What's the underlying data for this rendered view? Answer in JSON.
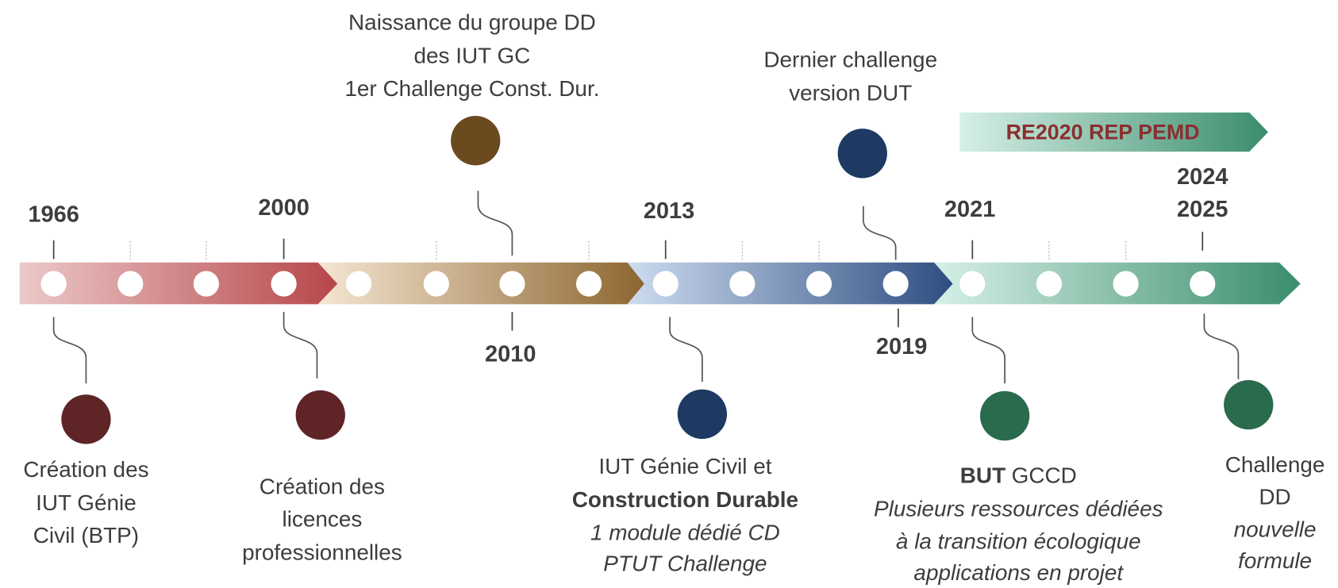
{
  "banner": "RE2020 REP PEMD",
  "years": [
    "1966",
    "2000",
    "2010",
    "2013",
    "2019",
    "2021",
    "2024",
    "2025"
  ],
  "events": [
    {
      "lines": [
        "Création des",
        "IUT Génie",
        "Civil (BTP)"
      ]
    },
    {
      "lines": [
        "Création des",
        "licences",
        "professionnelles"
      ]
    },
    {
      "lines": [
        "Naissance du groupe DD",
        "des IUT GC",
        "1er Challenge Const. Dur."
      ]
    },
    {
      "lines": [
        "IUT Génie Civil et",
        "Construction Durable",
        "1 module dédié CD",
        "PTUT Challenge"
      ]
    },
    {
      "lines": [
        "Dernier challenge",
        "version DUT"
      ]
    },
    {
      "lines": [
        "BUT",
        "GCCD",
        "Plusieurs ressources dédiées",
        "à la transition écologique",
        "applications en projet"
      ]
    },
    {
      "lines": [
        "Challenge",
        "DD",
        "nouvelle",
        "formule"
      ]
    }
  ]
}
